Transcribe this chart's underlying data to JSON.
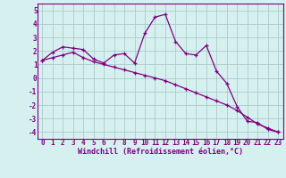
{
  "xlabel": "Windchill (Refroidissement éolien,°C)",
  "background_color": "#d6f0f0",
  "line_color": "#800080",
  "grid_color": "#aacccc",
  "hours": [
    0,
    1,
    2,
    3,
    4,
    5,
    6,
    7,
    8,
    9,
    10,
    11,
    12,
    13,
    14,
    15,
    16,
    17,
    18,
    19,
    20,
    21,
    22,
    23
  ],
  "series1": [
    1.3,
    1.9,
    2.3,
    2.2,
    2.1,
    1.4,
    1.1,
    1.7,
    1.8,
    1.1,
    3.3,
    4.5,
    4.7,
    2.7,
    1.8,
    1.7,
    2.4,
    0.5,
    -0.4,
    -2.1,
    -3.2,
    -3.3,
    -3.8,
    -4.0
  ],
  "series2": [
    1.3,
    1.5,
    1.7,
    1.9,
    1.5,
    1.2,
    1.0,
    0.8,
    0.6,
    0.4,
    0.2,
    0.0,
    -0.2,
    -0.5,
    -0.8,
    -1.1,
    -1.4,
    -1.7,
    -2.0,
    -2.4,
    -2.9,
    -3.4,
    -3.7,
    -4.0
  ],
  "ylim": [
    -4.5,
    5.5
  ],
  "yticks": [
    -4,
    -3,
    -2,
    -1,
    0,
    1,
    2,
    3,
    4,
    5
  ],
  "xlim": [
    -0.5,
    23.5
  ],
  "xticks": [
    0,
    1,
    2,
    3,
    4,
    5,
    6,
    7,
    8,
    9,
    10,
    11,
    12,
    13,
    14,
    15,
    16,
    17,
    18,
    19,
    20,
    21,
    22,
    23
  ],
  "tick_fontsize": 5.5,
  "xlabel_fontsize": 6.0
}
